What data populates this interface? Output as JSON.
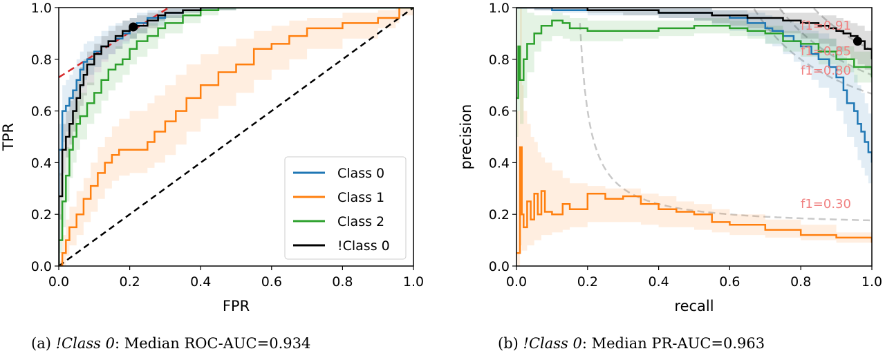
{
  "chart_data": [
    {
      "type": "line",
      "subtype": "roc",
      "xlabel": "FPR",
      "ylabel": "TPR",
      "xlim": [
        0,
        1
      ],
      "ylim": [
        0,
        1
      ],
      "xticks": [
        "0.0",
        "0.2",
        "0.4",
        "0.6",
        "0.8",
        "1.0"
      ],
      "yticks": [
        "0.0",
        "0.2",
        "0.4",
        "0.6",
        "0.8",
        "1.0"
      ],
      "grid": false,
      "legend_placement": "lower-right",
      "caption": {
        "prefix": "(a) ",
        "emph": "!Class 0",
        "suffix": ": Median ROC-AUC=0.934"
      },
      "chance_line": {
        "x": [
          0,
          1
        ],
        "y": [
          0,
          1
        ],
        "color": "#000000",
        "style": "dashed"
      },
      "tangent_line": {
        "x": [
          0,
          0.31
        ],
        "y": [
          0.73,
          1.0
        ],
        "color": "#d62728",
        "style": "dashed"
      },
      "operating_point": {
        "x": 0.21,
        "y": 0.925
      },
      "series": [
        {
          "name": "Class 0",
          "color": "#1f77b4",
          "x": [
            0,
            0,
            0.01,
            0.02,
            0.03,
            0.04,
            0.05,
            0.06,
            0.07,
            0.08,
            0.1,
            0.12,
            0.14,
            0.16,
            0.18,
            0.2,
            0.22,
            0.25,
            0.3,
            0.35,
            0.4,
            0.5,
            1.0
          ],
          "y": [
            0,
            0.45,
            0.6,
            0.62,
            0.65,
            0.68,
            0.72,
            0.76,
            0.79,
            0.8,
            0.83,
            0.85,
            0.87,
            0.88,
            0.9,
            0.92,
            0.94,
            0.96,
            0.98,
            0.99,
            1.0,
            1.0,
            1.0
          ],
          "band_lower": [
            0,
            0.35,
            0.48,
            0.52,
            0.56,
            0.6,
            0.65,
            0.69,
            0.72,
            0.74,
            0.77,
            0.8,
            0.82,
            0.84,
            0.86,
            0.88,
            0.9,
            0.93,
            0.96,
            0.98,
            0.99,
            1.0,
            1.0
          ],
          "band_upper": [
            0.1,
            0.55,
            0.7,
            0.72,
            0.74,
            0.77,
            0.8,
            0.83,
            0.86,
            0.87,
            0.89,
            0.91,
            0.93,
            0.94,
            0.95,
            0.96,
            0.98,
            0.99,
            1.0,
            1.0,
            1.0,
            1.0,
            1.0
          ]
        },
        {
          "name": "Class 1",
          "color": "#ff7f0e",
          "x": [
            0,
            0.01,
            0.02,
            0.03,
            0.05,
            0.07,
            0.09,
            0.11,
            0.13,
            0.15,
            0.17,
            0.2,
            0.25,
            0.27,
            0.3,
            0.33,
            0.36,
            0.4,
            0.45,
            0.5,
            0.55,
            0.6,
            0.65,
            0.7,
            0.8,
            0.9,
            0.95,
            0.96,
            1.0
          ],
          "y": [
            0,
            0.05,
            0.1,
            0.15,
            0.2,
            0.26,
            0.31,
            0.36,
            0.4,
            0.43,
            0.45,
            0.45,
            0.48,
            0.52,
            0.56,
            0.6,
            0.65,
            0.7,
            0.75,
            0.78,
            0.84,
            0.86,
            0.89,
            0.92,
            0.94,
            0.96,
            0.96,
            1.0,
            1.0
          ],
          "band_lower": [
            0,
            0.0,
            0.04,
            0.08,
            0.12,
            0.17,
            0.21,
            0.26,
            0.3,
            0.33,
            0.35,
            0.36,
            0.38,
            0.4,
            0.43,
            0.47,
            0.52,
            0.57,
            0.62,
            0.67,
            0.72,
            0.76,
            0.8,
            0.84,
            0.88,
            0.92,
            0.94,
            0.97,
            1.0
          ],
          "band_upper": [
            0.02,
            0.12,
            0.18,
            0.23,
            0.29,
            0.34,
            0.4,
            0.46,
            0.5,
            0.54,
            0.57,
            0.6,
            0.63,
            0.66,
            0.7,
            0.74,
            0.78,
            0.82,
            0.85,
            0.88,
            0.91,
            0.93,
            0.95,
            0.96,
            0.98,
            0.99,
            1.0,
            1.0,
            1.0
          ]
        },
        {
          "name": "Class 2",
          "color": "#2ca02c",
          "x": [
            0,
            0,
            0.01,
            0.02,
            0.03,
            0.04,
            0.05,
            0.06,
            0.08,
            0.1,
            0.12,
            0.14,
            0.16,
            0.18,
            0.2,
            0.22,
            0.25,
            0.28,
            0.3,
            0.35,
            0.4,
            0.45,
            0.5,
            0.6,
            1.0
          ],
          "y": [
            0,
            0.1,
            0.25,
            0.35,
            0.45,
            0.5,
            0.55,
            0.58,
            0.63,
            0.67,
            0.72,
            0.76,
            0.78,
            0.8,
            0.84,
            0.87,
            0.89,
            0.92,
            0.94,
            0.97,
            0.99,
            1.0,
            1.0,
            1.0,
            1.0
          ],
          "band_lower": [
            0,
            0.05,
            0.15,
            0.25,
            0.34,
            0.4,
            0.45,
            0.49,
            0.55,
            0.59,
            0.64,
            0.68,
            0.71,
            0.74,
            0.78,
            0.81,
            0.84,
            0.88,
            0.9,
            0.94,
            0.97,
            0.99,
            1.0,
            1.0,
            1.0
          ],
          "band_upper": [
            0.05,
            0.2,
            0.36,
            0.46,
            0.55,
            0.6,
            0.64,
            0.67,
            0.71,
            0.75,
            0.79,
            0.82,
            0.85,
            0.87,
            0.9,
            0.92,
            0.94,
            0.96,
            0.97,
            0.99,
            1.0,
            1.0,
            1.0,
            1.0,
            1.0
          ]
        },
        {
          "name": "!Class 0",
          "color": "#000000",
          "x": [
            0,
            0,
            0.01,
            0.02,
            0.03,
            0.04,
            0.05,
            0.06,
            0.07,
            0.08,
            0.1,
            0.12,
            0.14,
            0.16,
            0.18,
            0.2,
            0.22,
            0.25,
            0.28,
            0.3,
            0.35,
            0.4,
            0.5,
            1.0
          ],
          "y": [
            0,
            0.27,
            0.45,
            0.5,
            0.55,
            0.6,
            0.65,
            0.7,
            0.74,
            0.78,
            0.82,
            0.85,
            0.87,
            0.89,
            0.91,
            0.92,
            0.93,
            0.95,
            0.97,
            0.98,
            0.99,
            1.0,
            1.0,
            1.0
          ],
          "band_lower": [
            0,
            0.18,
            0.36,
            0.42,
            0.47,
            0.52,
            0.57,
            0.62,
            0.66,
            0.7,
            0.75,
            0.79,
            0.82,
            0.84,
            0.87,
            0.88,
            0.9,
            0.92,
            0.95,
            0.96,
            0.98,
            0.99,
            1.0,
            1.0
          ],
          "band_upper": [
            0.05,
            0.36,
            0.55,
            0.6,
            0.64,
            0.68,
            0.72,
            0.77,
            0.8,
            0.83,
            0.86,
            0.89,
            0.91,
            0.93,
            0.95,
            0.96,
            0.97,
            0.98,
            0.99,
            1.0,
            1.0,
            1.0,
            1.0,
            1.0
          ]
        }
      ]
    },
    {
      "type": "line",
      "subtype": "precision-recall",
      "xlabel": "recall",
      "ylabel": "precision",
      "xlim": [
        0,
        1
      ],
      "ylim": [
        0,
        1
      ],
      "xticks": [
        "0.0",
        "0.2",
        "0.4",
        "0.6",
        "0.8",
        "1.0"
      ],
      "yticks": [
        "0.0",
        "0.2",
        "0.4",
        "0.6",
        "0.8",
        "1.0"
      ],
      "grid": false,
      "caption": {
        "prefix": "(b) ",
        "emph": "!Class 0",
        "suffix": ": Median PR-AUC=0.963"
      },
      "operating_point": {
        "x": 0.96,
        "y": 0.87
      },
      "f1_isolines": [
        {
          "f1": 0.91,
          "label": "f1=0.91"
        },
        {
          "f1": 0.85,
          "label": "f1=0.85"
        },
        {
          "f1": 0.8,
          "label": "f1=0.80"
        },
        {
          "f1": 0.3,
          "label": "f1=0.30"
        }
      ],
      "series": [
        {
          "name": "Class 0",
          "color": "#1f77b4",
          "x": [
            0,
            0.05,
            0.1,
            0.2,
            0.3,
            0.4,
            0.5,
            0.55,
            0.6,
            0.65,
            0.7,
            0.72,
            0.75,
            0.78,
            0.8,
            0.83,
            0.85,
            0.88,
            0.9,
            0.92,
            0.93,
            0.95,
            0.96,
            0.97,
            0.98,
            0.99,
            1.0
          ],
          "y": [
            1.0,
            1.0,
            0.99,
            0.99,
            0.99,
            0.98,
            0.98,
            0.97,
            0.96,
            0.94,
            0.92,
            0.91,
            0.89,
            0.87,
            0.85,
            0.82,
            0.8,
            0.77,
            0.73,
            0.68,
            0.63,
            0.6,
            0.55,
            0.52,
            0.48,
            0.44,
            0.4
          ],
          "band_lower": [
            1.0,
            0.99,
            0.98,
            0.97,
            0.97,
            0.96,
            0.95,
            0.93,
            0.91,
            0.89,
            0.86,
            0.85,
            0.82,
            0.79,
            0.76,
            0.72,
            0.69,
            0.65,
            0.6,
            0.55,
            0.5,
            0.46,
            0.41,
            0.38,
            0.35,
            0.32,
            0.3
          ],
          "band_upper": [
            1.0,
            1.0,
            1.0,
            1.0,
            1.0,
            1.0,
            1.0,
            0.99,
            0.99,
            0.98,
            0.97,
            0.96,
            0.95,
            0.94,
            0.93,
            0.91,
            0.9,
            0.88,
            0.85,
            0.81,
            0.77,
            0.74,
            0.7,
            0.67,
            0.63,
            0.59,
            0.55
          ]
        },
        {
          "name": "Class 1",
          "color": "#ff7f0e",
          "x": [
            0,
            0.01,
            0.015,
            0.02,
            0.03,
            0.04,
            0.05,
            0.06,
            0.07,
            0.08,
            0.1,
            0.13,
            0.15,
            0.2,
            0.25,
            0.3,
            0.35,
            0.4,
            0.45,
            0.5,
            0.55,
            0.6,
            0.7,
            0.8,
            0.9,
            1.0
          ],
          "y": [
            0.05,
            0.46,
            0.2,
            0.15,
            0.25,
            0.18,
            0.28,
            0.2,
            0.29,
            0.21,
            0.2,
            0.24,
            0.22,
            0.28,
            0.26,
            0.27,
            0.24,
            0.22,
            0.21,
            0.2,
            0.17,
            0.16,
            0.14,
            0.12,
            0.11,
            0.09
          ],
          "band_lower": [
            0.0,
            0.08,
            0.06,
            0.06,
            0.08,
            0.08,
            0.1,
            0.1,
            0.12,
            0.12,
            0.13,
            0.14,
            0.15,
            0.17,
            0.17,
            0.17,
            0.16,
            0.15,
            0.15,
            0.14,
            0.13,
            0.12,
            0.11,
            0.1,
            0.09,
            0.08
          ],
          "band_upper": [
            0.6,
            1.0,
            0.7,
            0.6,
            0.55,
            0.5,
            0.48,
            0.44,
            0.42,
            0.4,
            0.37,
            0.34,
            0.32,
            0.31,
            0.3,
            0.3,
            0.28,
            0.27,
            0.25,
            0.24,
            0.22,
            0.2,
            0.18,
            0.16,
            0.13,
            0.11
          ]
        },
        {
          "name": "Class 2",
          "color": "#2ca02c",
          "x": [
            0,
            0.005,
            0.01,
            0.02,
            0.03,
            0.05,
            0.07,
            0.1,
            0.13,
            0.15,
            0.2,
            0.3,
            0.4,
            0.5,
            0.55,
            0.6,
            0.65,
            0.7,
            0.75,
            0.8,
            0.85,
            0.9,
            0.95,
            1.0
          ],
          "y": [
            0.65,
            0.85,
            0.72,
            0.8,
            0.86,
            0.9,
            0.93,
            0.95,
            0.94,
            0.92,
            0.91,
            0.91,
            0.92,
            0.93,
            0.93,
            0.92,
            0.91,
            0.9,
            0.87,
            0.86,
            0.83,
            0.8,
            0.77,
            0.73
          ],
          "band_lower": [
            0.5,
            0.6,
            0.55,
            0.65,
            0.75,
            0.83,
            0.87,
            0.89,
            0.88,
            0.87,
            0.87,
            0.88,
            0.89,
            0.9,
            0.9,
            0.89,
            0.88,
            0.86,
            0.83,
            0.81,
            0.78,
            0.75,
            0.71,
            0.67
          ],
          "band_upper": [
            1.0,
            1.0,
            1.0,
            1.0,
            0.98,
            0.97,
            0.97,
            0.98,
            0.97,
            0.96,
            0.95,
            0.95,
            0.95,
            0.96,
            0.96,
            0.95,
            0.94,
            0.93,
            0.91,
            0.9,
            0.88,
            0.85,
            0.83,
            0.8
          ]
        },
        {
          "name": "!Class 0",
          "color": "#000000",
          "x": [
            0,
            0.05,
            0.1,
            0.2,
            0.3,
            0.4,
            0.5,
            0.55,
            0.6,
            0.65,
            0.7,
            0.75,
            0.8,
            0.85,
            0.88,
            0.9,
            0.92,
            0.94,
            0.96,
            0.98,
            1.0
          ],
          "y": [
            1.0,
            1.0,
            1.0,
            0.99,
            0.99,
            0.98,
            0.98,
            0.97,
            0.97,
            0.96,
            0.96,
            0.95,
            0.94,
            0.93,
            0.92,
            0.91,
            0.9,
            0.89,
            0.87,
            0.84,
            0.8
          ],
          "band_lower": [
            1.0,
            0.99,
            0.99,
            0.98,
            0.97,
            0.96,
            0.95,
            0.94,
            0.93,
            0.92,
            0.91,
            0.9,
            0.88,
            0.86,
            0.85,
            0.83,
            0.82,
            0.8,
            0.78,
            0.76,
            0.72
          ],
          "band_upper": [
            1.0,
            1.0,
            1.0,
            1.0,
            1.0,
            1.0,
            1.0,
            0.99,
            0.99,
            0.99,
            0.99,
            0.98,
            0.98,
            0.97,
            0.97,
            0.96,
            0.95,
            0.94,
            0.93,
            0.91,
            0.88
          ]
        }
      ]
    }
  ]
}
